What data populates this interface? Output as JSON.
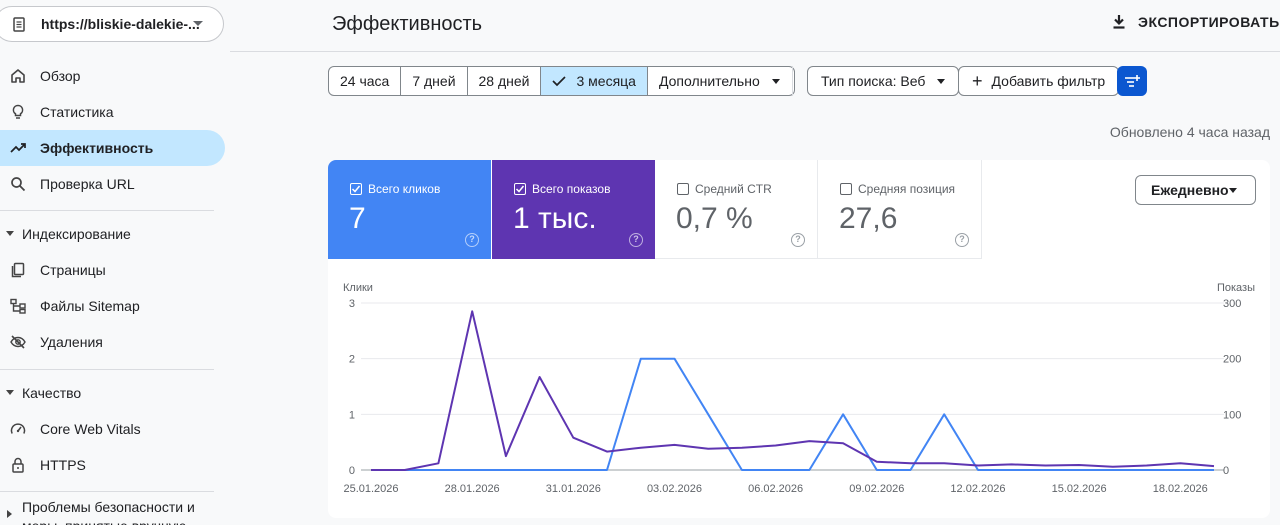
{
  "property": {
    "url": "https://bliskie-dalekie-..."
  },
  "sidebar": {
    "items": [
      {
        "label": "Обзор",
        "icon": "home-icon"
      },
      {
        "label": "Статистика",
        "icon": "lightbulb-icon"
      },
      {
        "label": "Эффективность",
        "icon": "trending-up-icon",
        "active": true
      },
      {
        "label": "Проверка URL",
        "icon": "search-icon"
      }
    ],
    "indexing": {
      "title": "Индексирование",
      "items": [
        {
          "label": "Страницы",
          "icon": "pages-icon"
        },
        {
          "label": "Файлы Sitemap",
          "icon": "sitemap-icon"
        },
        {
          "label": "Удаления",
          "icon": "eye-off-icon"
        }
      ]
    },
    "quality": {
      "title": "Качество",
      "items": [
        {
          "label": "Core Web Vitals",
          "icon": "speed-icon"
        },
        {
          "label": "HTTPS",
          "icon": "lock-icon"
        }
      ]
    },
    "security": {
      "title": "Проблемы безопасности и меры, принятые вручную"
    }
  },
  "header": {
    "title": "Эффективность",
    "export_label": "ЭКСПОРТИРОВАТЬ"
  },
  "filters": {
    "ranges": [
      "24 часа",
      "7 дней",
      "28 дней",
      "3 месяца"
    ],
    "selected_range": "3 месяца",
    "more_label": "Дополнительно",
    "search_type": "Тип поиска: Веб",
    "add_filter": "Добавить фильтр"
  },
  "updated": "Обновлено 4 часа назад",
  "metrics": [
    {
      "label": "Всего кликов",
      "value": "7",
      "checked": true,
      "color": "#4285f4"
    },
    {
      "label": "Всего показов",
      "value": "1 тыс.",
      "checked": true,
      "color": "#5e35b1"
    },
    {
      "label": "Средний CTR",
      "value": "0,7 %",
      "checked": false
    },
    {
      "label": "Средняя позиция",
      "value": "27,6",
      "checked": false
    }
  ],
  "period": "Ежедневно",
  "chart_data": {
    "type": "line",
    "y_left_label": "Клики",
    "y_right_label": "Показы",
    "y_left_ticks": [
      "0",
      "1",
      "2",
      "3"
    ],
    "y_right_ticks": [
      "0",
      "100",
      "200",
      "300"
    ],
    "ylim_left": [
      0,
      3
    ],
    "ylim_right": [
      0,
      300
    ],
    "x_tick_labels": [
      "25.01.2026",
      "28.01.2026",
      "31.01.2026",
      "03.02.2026",
      "06.02.2026",
      "09.02.2026",
      "12.02.2026",
      "15.02.2026",
      "18.02.2026"
    ],
    "x": [
      "25.01",
      "26.01",
      "27.01",
      "28.01",
      "29.01",
      "30.01",
      "31.01",
      "01.02",
      "02.02",
      "03.02",
      "04.02",
      "05.02",
      "06.02",
      "07.02",
      "08.02",
      "09.02",
      "10.02",
      "11.02",
      "12.02",
      "13.02",
      "14.02",
      "15.02",
      "16.02",
      "17.02",
      "18.02",
      "19.02"
    ],
    "series": [
      {
        "name": "Клики",
        "axis": "left",
        "color": "#4285f4",
        "values": [
          0,
          0,
          0,
          0,
          0,
          0,
          0,
          0,
          2,
          2,
          1,
          0,
          0,
          0,
          1,
          0,
          0,
          1,
          0,
          0,
          0,
          0,
          0,
          0,
          0,
          0
        ]
      },
      {
        "name": "Показы",
        "axis": "right",
        "color": "#5e35b1",
        "values": [
          0,
          0,
          12,
          285,
          25,
          167,
          58,
          33,
          40,
          45,
          38,
          40,
          44,
          52,
          48,
          15,
          12,
          12,
          8,
          10,
          8,
          9,
          6,
          8,
          12,
          7
        ]
      }
    ]
  }
}
